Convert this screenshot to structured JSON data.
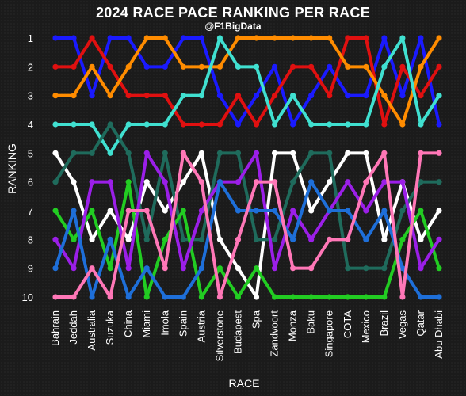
{
  "header": {
    "title": "2024 RACE PACE RANKING PER RACE",
    "subtitle": "@F1BigData"
  },
  "chart_data": {
    "type": "line",
    "title": "2024 RACE PACE RANKING PER RACE",
    "subtitle": "@F1BigData",
    "xlabel": "RACE",
    "ylabel": "RANKING",
    "x": [
      "Bahrain",
      "Jeddah",
      "Australia",
      "Suzuka",
      "China",
      "Miami",
      "Imola",
      "Spain",
      "Austria",
      "Silverstone",
      "Budapest",
      "Spa",
      "Zandvoort",
      "Monza",
      "Baku",
      "Singapore",
      "COTA",
      "Mexico",
      "Brazil",
      "Vegas",
      "Qatar",
      "Abu Dhabi"
    ],
    "y_ticks": [
      1,
      2,
      3,
      4,
      5,
      6,
      7,
      8,
      9,
      10
    ],
    "ylim": [
      1,
      10
    ],
    "y_inverted": true,
    "grid": false,
    "legend": "none",
    "series": [
      {
        "color": "#1a1aff",
        "values": [
          1,
          1,
          3,
          1,
          1,
          2,
          2,
          1,
          1,
          3,
          4,
          3,
          2,
          4,
          3,
          2,
          3,
          3,
          1,
          3,
          1,
          4
        ]
      },
      {
        "color": "#e01010",
        "values": [
          2,
          2,
          1,
          2,
          3,
          3,
          3,
          4,
          4,
          4,
          3,
          4,
          3,
          2,
          2,
          3,
          1,
          1,
          4,
          2,
          3,
          2
        ]
      },
      {
        "color": "#ff8c00",
        "values": [
          3,
          3,
          2,
          3,
          2,
          1,
          1,
          2,
          2,
          2,
          1,
          1,
          1,
          1,
          1,
          1,
          2,
          2,
          3,
          4,
          2,
          1
        ]
      },
      {
        "color": "#40e0d0",
        "values": [
          4,
          4,
          4,
          5,
          4,
          4,
          4,
          3,
          3,
          1,
          2,
          2,
          4,
          3,
          4,
          4,
          4,
          4,
          2,
          1,
          4,
          3
        ]
      },
      {
        "color": "#ffffff",
        "values": [
          5,
          6,
          8,
          7,
          8,
          6,
          7,
          6,
          5,
          8,
          9,
          10,
          5,
          5,
          7,
          6,
          5,
          5,
          8,
          6,
          8,
          7
        ]
      },
      {
        "color": "#1f6b5c",
        "values": [
          6,
          5,
          5,
          4,
          5,
          8,
          5,
          8,
          8,
          5,
          5,
          8,
          8,
          6,
          5,
          5,
          9,
          9,
          9,
          7,
          6,
          6
        ]
      },
      {
        "color": "#22cc22",
        "values": [
          7,
          8,
          7,
          9,
          6,
          10,
          8,
          7,
          10,
          9,
          10,
          9,
          10,
          10,
          10,
          10,
          10,
          10,
          10,
          8,
          7,
          9
        ]
      },
      {
        "color": "#9b1fe8",
        "values": [
          8,
          9,
          6,
          6,
          9,
          5,
          6,
          9,
          7,
          6,
          6,
          5,
          9,
          7,
          8,
          7,
          6,
          7,
          6,
          6,
          9,
          8
        ]
      },
      {
        "color": "#1e6fd9",
        "values": [
          9,
          7,
          10,
          8,
          10,
          9,
          10,
          10,
          9,
          6,
          7,
          7,
          7,
          8,
          6,
          7,
          7,
          8,
          7,
          9,
          10,
          10
        ]
      },
      {
        "color": "#ff77b7",
        "values": [
          10,
          10,
          9,
          10,
          7,
          7,
          9,
          5,
          6,
          10,
          8,
          6,
          6,
          9,
          9,
          8,
          8,
          6,
          5,
          10,
          5,
          5
        ]
      }
    ]
  }
}
